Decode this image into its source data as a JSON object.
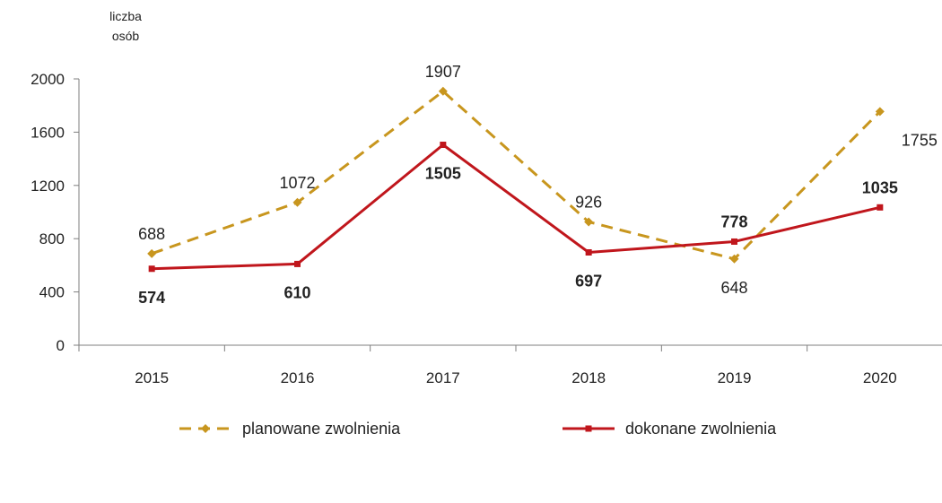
{
  "chart_data": {
    "type": "line",
    "ylabel": "liczba osób",
    "ylabel_lines": [
      "liczba",
      "osób"
    ],
    "categories": [
      "2015",
      "2016",
      "2017",
      "2018",
      "2019",
      "2020"
    ],
    "ylim": [
      0,
      2000
    ],
    "yticks": [
      0,
      400,
      800,
      1200,
      1600,
      2000
    ],
    "grid": false,
    "legend_position": "bottom",
    "series": [
      {
        "name": "planowane zwolnienia",
        "values": [
          688,
          1072,
          1907,
          926,
          648,
          1755
        ],
        "color": "#C8961E",
        "style": "dashed",
        "marker": "diamond",
        "label_weight": "normal",
        "label_positions": [
          "above",
          "above",
          "above",
          "above",
          "below",
          "below"
        ]
      },
      {
        "name": "dokonane zwolnienia",
        "values": [
          574,
          610,
          1505,
          697,
          778,
          1035
        ],
        "color": "#C0161C",
        "style": "solid",
        "marker": "square",
        "label_weight": "bold",
        "label_positions": [
          "below",
          "below",
          "below",
          "below",
          "above",
          "above"
        ]
      }
    ]
  }
}
